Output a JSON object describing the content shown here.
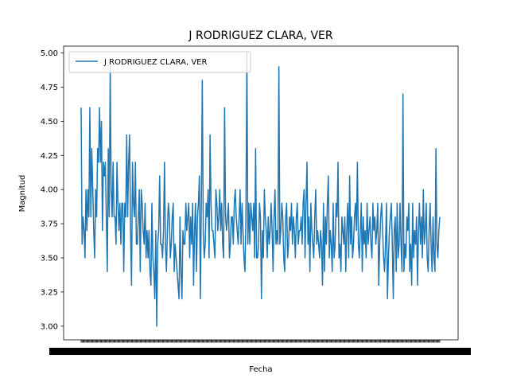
{
  "chart_data": {
    "type": "line",
    "title": "J RODRIGUEZ CLARA, VER",
    "xlabel": "Fecha",
    "ylabel": "Magnitud",
    "ylim": [
      2.9,
      5.05
    ],
    "yticks": [
      "3.00",
      "3.25",
      "3.50",
      "3.75",
      "4.00",
      "4.25",
      "4.50",
      "4.75",
      "5.00"
    ],
    "legend_position": "upper-left",
    "line_color": "#1f77b4",
    "series": [
      {
        "name": "J RODRIGUEZ CLARA, VER",
        "values": [
          4.6,
          3.6,
          3.8,
          3.7,
          3.5,
          4.0,
          3.7,
          4.0,
          3.8,
          4.6,
          3.8,
          4.3,
          4.0,
          3.7,
          3.5,
          4.0,
          3.8,
          4.3,
          4.2,
          4.6,
          4.2,
          4.5,
          3.7,
          4.2,
          4.1,
          4.2,
          3.8,
          3.4,
          4.3,
          3.8,
          4.9,
          4.0,
          3.8,
          4.2,
          3.8,
          3.8,
          3.6,
          4.2,
          3.9,
          3.7,
          3.9,
          3.6,
          3.9,
          3.9,
          3.4,
          3.9,
          3.8,
          4.4,
          3.8,
          4.2,
          4.4,
          3.7,
          3.3,
          4.2,
          3.9,
          3.8,
          4.2,
          3.6,
          3.6,
          3.8,
          4.0,
          3.4,
          4.0,
          3.9,
          3.7,
          3.6,
          3.9,
          3.5,
          3.7,
          3.5,
          3.7,
          3.4,
          3.3,
          3.9,
          3.5,
          3.4,
          3.2,
          3.7,
          3.0,
          3.6,
          3.7,
          4.1,
          3.6,
          3.6,
          3.5,
          3.7,
          4.2,
          3.6,
          3.4,
          3.7,
          3.9,
          3.8,
          3.5,
          3.6,
          3.8,
          3.9,
          3.4,
          3.6,
          3.5,
          3.4,
          3.3,
          3.2,
          3.8,
          3.4,
          3.2,
          3.7,
          3.6,
          3.6,
          3.9,
          3.7,
          3.8,
          3.9,
          3.5,
          3.8,
          3.6,
          3.9,
          3.3,
          3.7,
          3.9,
          3.4,
          3.8,
          3.9,
          4.1,
          3.2,
          3.9,
          4.8,
          3.7,
          3.5,
          3.6,
          3.9,
          3.8,
          4.0,
          3.5,
          4.4,
          3.9,
          3.7,
          3.7,
          3.6,
          3.5,
          4.0,
          3.9,
          3.7,
          3.8,
          4.0,
          3.7,
          3.9,
          3.6,
          3.5,
          4.6,
          3.8,
          3.7,
          3.8,
          3.9,
          3.5,
          3.6,
          3.8,
          3.8,
          3.6,
          3.9,
          4.0,
          3.8,
          3.7,
          3.6,
          3.8,
          4.0,
          3.6,
          3.9,
          3.7,
          3.5,
          3.4,
          3.8,
          5.0,
          3.6,
          3.9,
          3.6,
          3.9,
          3.8,
          3.7,
          3.9,
          3.5,
          4.3,
          3.5,
          3.5,
          3.6,
          3.9,
          3.8,
          3.2,
          3.7,
          3.5,
          4.0,
          3.8,
          3.7,
          3.5,
          3.8,
          3.6,
          3.7,
          3.9,
          3.7,
          3.4,
          3.8,
          4.0,
          3.6,
          3.7,
          3.6,
          4.9,
          3.6,
          3.7,
          3.9,
          3.8,
          3.5,
          3.4,
          3.8,
          3.9,
          3.5,
          3.6,
          3.8,
          3.7,
          3.9,
          3.6,
          3.8,
          3.7,
          3.5,
          3.8,
          3.9,
          3.6,
          3.7,
          3.7,
          3.8,
          3.6,
          3.9,
          4.0,
          3.5,
          3.9,
          4.2,
          3.6,
          3.8,
          3.4,
          3.9,
          3.7,
          3.6,
          3.5,
          3.8,
          4.0,
          3.6,
          3.7,
          3.6,
          3.5,
          3.7,
          3.6,
          3.3,
          3.9,
          3.4,
          3.8,
          3.6,
          3.9,
          4.1,
          3.5,
          3.7,
          3.6,
          3.4,
          3.9,
          3.5,
          3.6,
          3.9,
          3.8,
          4.2,
          3.5,
          3.6,
          3.4,
          3.8,
          3.7,
          3.6,
          3.8,
          3.4,
          3.7,
          3.9,
          3.5,
          4.1,
          3.6,
          3.8,
          3.5,
          3.6,
          3.8,
          3.9,
          3.7,
          4.2,
          3.6,
          3.5,
          3.7,
          3.9,
          3.4,
          3.8,
          3.6,
          3.7,
          3.5,
          3.9,
          3.6,
          3.7,
          3.8,
          3.6,
          3.5,
          3.9,
          3.7,
          3.8,
          3.6,
          3.7,
          3.9,
          3.3,
          3.6,
          3.8,
          3.9,
          3.7,
          3.5,
          3.4,
          3.6,
          3.9,
          3.2,
          3.5,
          3.7,
          3.8,
          3.9,
          3.6,
          3.2,
          3.7,
          3.8,
          3.4,
          3.9,
          3.5,
          3.6,
          3.9,
          3.6,
          3.4,
          4.7,
          3.4,
          3.6,
          3.5,
          3.8,
          3.7,
          3.9,
          3.4,
          3.6,
          3.3,
          3.9,
          3.5,
          3.7,
          3.6,
          3.8,
          3.3,
          3.7,
          3.9,
          3.6,
          3.8,
          3.5,
          4.0,
          3.6,
          3.7,
          3.9,
          3.5,
          3.4,
          3.7,
          3.9,
          3.6,
          3.4,
          3.8,
          3.5,
          3.4,
          4.3,
          3.6,
          3.5,
          3.7,
          3.8
        ]
      }
    ]
  }
}
